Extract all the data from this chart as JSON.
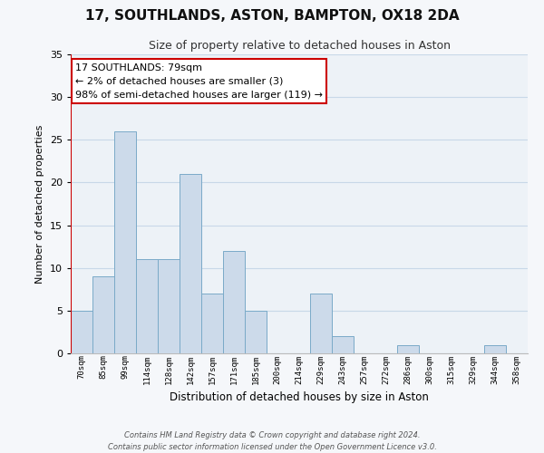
{
  "title": "17, SOUTHLANDS, ASTON, BAMPTON, OX18 2DA",
  "subtitle": "Size of property relative to detached houses in Aston",
  "xlabel": "Distribution of detached houses by size in Aston",
  "ylabel": "Number of detached properties",
  "bar_labels": [
    "70sqm",
    "85sqm",
    "99sqm",
    "114sqm",
    "128sqm",
    "142sqm",
    "157sqm",
    "171sqm",
    "185sqm",
    "200sqm",
    "214sqm",
    "229sqm",
    "243sqm",
    "257sqm",
    "272sqm",
    "286sqm",
    "300sqm",
    "315sqm",
    "329sqm",
    "344sqm",
    "358sqm"
  ],
  "bar_values": [
    5,
    9,
    26,
    11,
    11,
    21,
    7,
    12,
    5,
    0,
    0,
    7,
    2,
    0,
    0,
    1,
    0,
    0,
    0,
    1,
    0
  ],
  "bar_color": "#ccdaea",
  "bar_edgecolor": "#7aaac8",
  "highlight_color": "#cc0000",
  "ylim": [
    0,
    35
  ],
  "yticks": [
    0,
    5,
    10,
    15,
    20,
    25,
    30,
    35
  ],
  "annotation_title": "17 SOUTHLANDS: 79sqm",
  "annotation_line1": "← 2% of detached houses are smaller (3)",
  "annotation_line2": "98% of semi-detached houses are larger (119) →",
  "annotation_box_facecolor": "#ffffff",
  "annotation_box_edgecolor": "#cc0000",
  "footer_line1": "Contains HM Land Registry data © Crown copyright and database right 2024.",
  "footer_line2": "Contains public sector information licensed under the Open Government Licence v3.0.",
  "grid_color": "#c8d8e8",
  "bg_color": "#edf2f7",
  "fig_bg": "#f5f7fa"
}
